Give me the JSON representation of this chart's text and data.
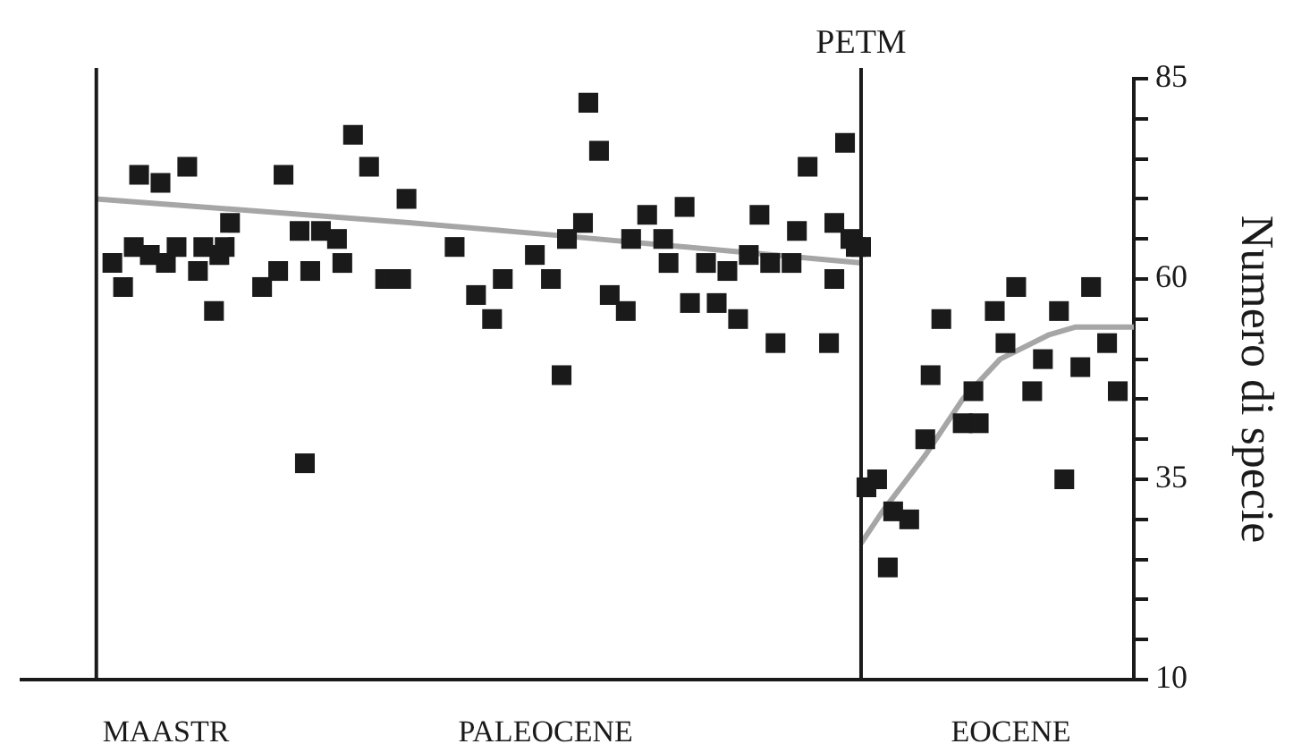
{
  "chart_data": {
    "type": "scatter",
    "ylabel": "Numero di specie",
    "categories": [
      null,
      null,
      null,
      null,
      null,
      null,
      null,
      null,
      null,
      null,
      null,
      null,
      null,
      null,
      null,
      null,
      null,
      null,
      null,
      null,
      null,
      null,
      null,
      null,
      null,
      null,
      null,
      "MAASTR",
      null,
      null,
      null,
      null,
      null,
      null,
      null,
      null,
      null,
      null,
      null,
      null,
      null,
      null,
      null,
      null,
      null,
      null,
      null,
      null,
      null,
      null,
      null,
      null,
      null,
      null,
      null,
      null,
      null,
      null,
      null,
      null,
      null,
      null,
      null,
      null,
      null,
      null,
      null,
      null,
      null,
      null,
      null,
      null,
      null,
      null,
      null,
      null,
      null,
      null,
      null,
      null,
      null,
      null,
      null,
      null,
      null,
      null,
      null,
      null,
      null,
      null,
      null,
      null,
      null,
      null,
      null,
      null,
      null,
      null,
      "PALEOCENE",
      null,
      null,
      null,
      null,
      null,
      null,
      null,
      null,
      null,
      null,
      null,
      null,
      null,
      null,
      null,
      null,
      null,
      null,
      null,
      null,
      null,
      null,
      null,
      null,
      null,
      null,
      null,
      null,
      null,
      null,
      null,
      null,
      null,
      null,
      null,
      null,
      null,
      null,
      null,
      null,
      null,
      null,
      null,
      null,
      null,
      null,
      null,
      null,
      null,
      null,
      null,
      null,
      null,
      null,
      null,
      null,
      null,
      null,
      null,
      null,
      null,
      null,
      null,
      null,
      null,
      null,
      null,
      null,
      null,
      null,
      null,
      null,
      null,
      null,
      null,
      null,
      null,
      null,
      null,
      null,
      null,
      null,
      null,
      null,
      null,
      null,
      "EOCENE",
      null,
      null,
      null,
      null,
      null,
      null,
      null,
      null,
      null,
      null,
      null,
      null,
      null,
      null,
      null,
      null,
      null,
      null,
      null,
      null,
      null,
      null,
      null
    ],
    "series": [
      {
        "color": "#1a1a1a",
        "marker": "square",
        "values": [
          null,
          null,
          null,
          null,
          null,
          null,
          null,
          null,
          null,
          null,
          null,
          null,
          null,
          null,
          null,
          null,
          null,
          62,
          null,
          59,
          null,
          64,
          73,
          null,
          63,
          null,
          72,
          62,
          null,
          64,
          null,
          74,
          null,
          61,
          64,
          null,
          56,
          63,
          64,
          67,
          null,
          null,
          null,
          null,
          null,
          59,
          null,
          null,
          61,
          73,
          null,
          null,
          66,
          37,
          61,
          null,
          66,
          null,
          null,
          65,
          62,
          null,
          78,
          null,
          null,
          74,
          null,
          null,
          60,
          null,
          null,
          60,
          70,
          null,
          null,
          null,
          null,
          null,
          null,
          null,
          null,
          64,
          null,
          null,
          null,
          58,
          null,
          null,
          55,
          null,
          60,
          null,
          null,
          null,
          null,
          null,
          63,
          null,
          null,
          60,
          null,
          48,
          65,
          null,
          null,
          67,
          82,
          null,
          76,
          null,
          58,
          null,
          null,
          56,
          65,
          null,
          null,
          68,
          null,
          null,
          65,
          62,
          null,
          null,
          69,
          57,
          null,
          null,
          62,
          null,
          57,
          null,
          61,
          null,
          55,
          null,
          63,
          null,
          68,
          null,
          62,
          52,
          null,
          null,
          62,
          66,
          null,
          74,
          null,
          null,
          null,
          52,
          67,
          null,
          77,
          65,
          64,
          64,
          34,
          null,
          35,
          null,
          24,
          31,
          null,
          null,
          30,
          null,
          null,
          40,
          48,
          null,
          55,
          null,
          null,
          null,
          42,
          null,
          46,
          42,
          null,
          null,
          56,
          null,
          52,
          null,
          59,
          null,
          null,
          46,
          null,
          50,
          null,
          null,
          56,
          35,
          null,
          null,
          49,
          null,
          59,
          null,
          null,
          52,
          null,
          46,
          null,
          null,
          null
        ]
      },
      {
        "color": "#1a1a1a",
        "marker": "square",
        "values": [
          null,
          null,
          null,
          null,
          null,
          null,
          null,
          null,
          null,
          null,
          null,
          null,
          null,
          null,
          null,
          null,
          null,
          null,
          null,
          null,
          null,
          null,
          null,
          null,
          null,
          null,
          null,
          null,
          null,
          null,
          null,
          null,
          null,
          null,
          null,
          null,
          null,
          null,
          null,
          null,
          null,
          null,
          null,
          null,
          null,
          null,
          null,
          null,
          null,
          null,
          null,
          null,
          null,
          null,
          null,
          null,
          null,
          null,
          null,
          null,
          null,
          null,
          null,
          null,
          null,
          null,
          null,
          null,
          null,
          null,
          null,
          null,
          null,
          null,
          null,
          null,
          null,
          null,
          null,
          null,
          null,
          null,
          null,
          null,
          null,
          null,
          null,
          null,
          null,
          null,
          null,
          null,
          null,
          null,
          null,
          null,
          null,
          null,
          null,
          null,
          null,
          null,
          null,
          null,
          null,
          null,
          null,
          null,
          null,
          null,
          null,
          null,
          null,
          null,
          null,
          null,
          null,
          null,
          null,
          null,
          null,
          null,
          null,
          null,
          null,
          null,
          null,
          null,
          null,
          null,
          null,
          null,
          null,
          null,
          null,
          null,
          null,
          null,
          null,
          null,
          null,
          null,
          null,
          null,
          null,
          null,
          null,
          null,
          null,
          null,
          null,
          null,
          60,
          null,
          null,
          null,
          null,
          null,
          null,
          null,
          null,
          null,
          null,
          null,
          null,
          null,
          null,
          null,
          null,
          null,
          null,
          null,
          null,
          null,
          null,
          null,
          null,
          null,
          null,
          null,
          null,
          null,
          null,
          null,
          null,
          null,
          null,
          null,
          null,
          null,
          null,
          null,
          null,
          null,
          null,
          null,
          null,
          null,
          null,
          null,
          null,
          null,
          null,
          null,
          null,
          null,
          null,
          null,
          null
        ]
      },
      {
        "type": "line",
        "color": "#a6a6a6",
        "marker": "none",
        "values": [
          null,
          null,
          null,
          null,
          null,
          null,
          null,
          null,
          null,
          null,
          null,
          null,
          null,
          null,
          70,
          null,
          null,
          null,
          null,
          null,
          null,
          null,
          null,
          null,
          null,
          null,
          null,
          null,
          null,
          null,
          null,
          null,
          null,
          null,
          null,
          null,
          null,
          null,
          null,
          null,
          null,
          null,
          null,
          null,
          null,
          null,
          null,
          null,
          null,
          null,
          null,
          null,
          null,
          null,
          null,
          null,
          null,
          null,
          null,
          null,
          null,
          null,
          null,
          null,
          null,
          null,
          null,
          null,
          null,
          null,
          null,
          null,
          null,
          67,
          null,
          null,
          null,
          null,
          null,
          null,
          null,
          null,
          null,
          null,
          null,
          null,
          null,
          null,
          null,
          null,
          null,
          null,
          null,
          null,
          null,
          null,
          null,
          null,
          null,
          null,
          null,
          65.4,
          null,
          null,
          null,
          null,
          null,
          null,
          null,
          null,
          null,
          null,
          null,
          null,
          null,
          null,
          null,
          null,
          null,
          null,
          null,
          null,
          null,
          null,
          null,
          null,
          null,
          null,
          null,
          null,
          null,
          null,
          null,
          null,
          null,
          null,
          null,
          null,
          null,
          null,
          null,
          null,
          null,
          null,
          null,
          null,
          null,
          null,
          null,
          null,
          null,
          null,
          null,
          null,
          null,
          null,
          null,
          62,
          null,
          null,
          null,
          null,
          null,
          null,
          null,
          null,
          null,
          null,
          null,
          null,
          null,
          null,
          null,
          null,
          null,
          null,
          null,
          null,
          null,
          null,
          null,
          null,
          null,
          null,
          null,
          null,
          null,
          null,
          null,
          null,
          null,
          null,
          null,
          null,
          null,
          null,
          null,
          null,
          null,
          null,
          null,
          null,
          null,
          null,
          null,
          null,
          null,
          null,
          null
        ]
      },
      {
        "type": "line",
        "color": "#a6a6a6",
        "marker": "none",
        "values": [
          null,
          null,
          null,
          null,
          null,
          null,
          null,
          null,
          null,
          null,
          null,
          null,
          null,
          null,
          null,
          null,
          null,
          null,
          null,
          null,
          null,
          null,
          null,
          null,
          null,
          null,
          null,
          null,
          null,
          null,
          null,
          null,
          null,
          null,
          null,
          null,
          null,
          null,
          null,
          null,
          null,
          null,
          null,
          null,
          null,
          null,
          null,
          null,
          null,
          null,
          null,
          null,
          null,
          null,
          null,
          null,
          null,
          null,
          null,
          null,
          null,
          null,
          null,
          null,
          null,
          null,
          null,
          null,
          null,
          null,
          null,
          null,
          null,
          null,
          null,
          null,
          null,
          null,
          null,
          null,
          null,
          null,
          null,
          null,
          null,
          null,
          null,
          null,
          null,
          null,
          null,
          null,
          null,
          null,
          null,
          null,
          null,
          null,
          null,
          null,
          null,
          null,
          null,
          null,
          null,
          null,
          null,
          null,
          null,
          null,
          null,
          null,
          null,
          null,
          null,
          null,
          null,
          null,
          null,
          null,
          null,
          null,
          null,
          null,
          null,
          null,
          null,
          null,
          null,
          null,
          null,
          null,
          null,
          null,
          null,
          null,
          null,
          null,
          null,
          null,
          null,
          null,
          null,
          null,
          null,
          null,
          null,
          null,
          null,
          null,
          null,
          null,
          null,
          null,
          null,
          null,
          null,
          27,
          null,
          null,
          null,
          31,
          null,
          null,
          null,
          null,
          null,
          null,
          null,
          38,
          null,
          null,
          null,
          null,
          null,
          null,
          45,
          null,
          null,
          null,
          null,
          null,
          null,
          50,
          null,
          null,
          null,
          null,
          null,
          null,
          null,
          null,
          53,
          null,
          null,
          null,
          null,
          54,
          null,
          null,
          null,
          null,
          null,
          null,
          null,
          null,
          54,
          null,
          54
        ]
      }
    ],
    "ylim": [
      10,
      85
    ],
    "yticks": [
      10,
      {
        "value": 15,
        "label": null
      },
      {
        "value": 20,
        "label": null
      },
      {
        "value": 25,
        "label": null
      },
      {
        "value": 30,
        "label": null
      },
      35,
      {
        "value": 40,
        "label": null
      },
      {
        "value": 45,
        "label": null
      },
      {
        "value": 50,
        "label": null
      },
      {
        "value": 55,
        "label": null
      },
      60,
      {
        "value": 65,
        "label": null
      },
      {
        "value": 70,
        "label": null
      },
      {
        "value": 75,
        "label": null
      },
      {
        "value": 80,
        "label": null
      },
      85
    ],
    "annotations": [
      "PETM"
    ],
    "grid": false,
    "legend": false
  }
}
